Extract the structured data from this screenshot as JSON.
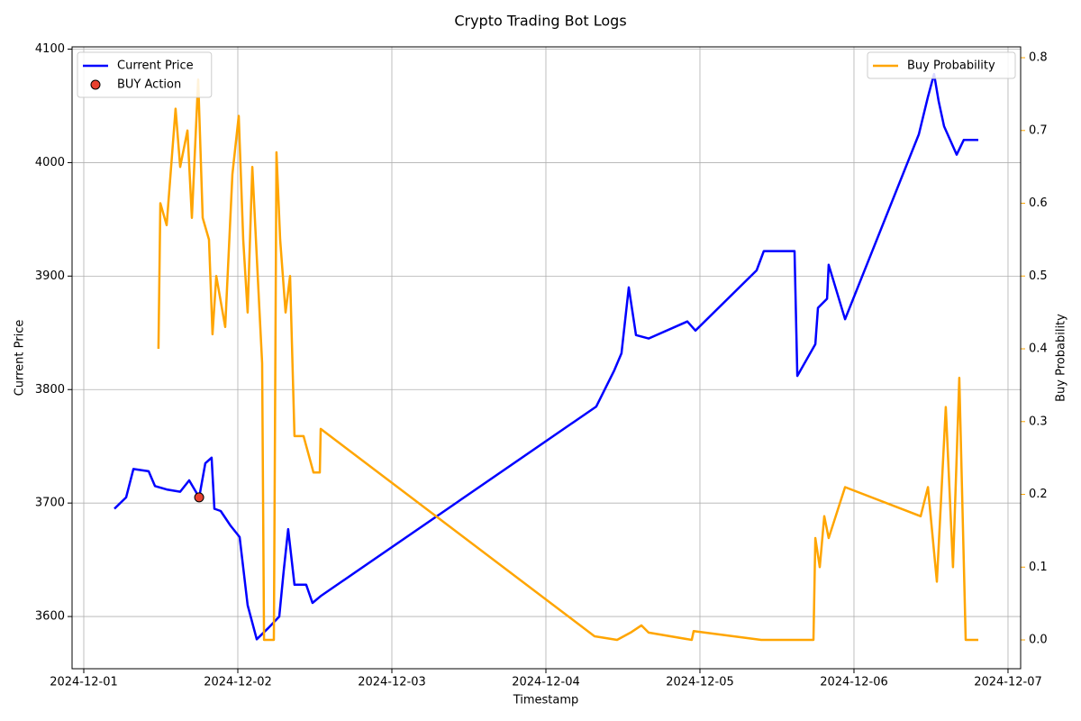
{
  "chart_data": {
    "type": "line",
    "title": "Crypto Trading Bot Logs",
    "xlabel": "Timestamp",
    "ylabel": "Current Price",
    "y2label": "Buy Probability",
    "xlim": [
      0.924,
      7.082
    ],
    "xticks": [
      {
        "value": 1,
        "label": "2024-12-01"
      },
      {
        "value": 2,
        "label": "2024-12-02"
      },
      {
        "value": 3,
        "label": "2024-12-03"
      },
      {
        "value": 4,
        "label": "2024-12-04"
      },
      {
        "value": 5,
        "label": "2024-12-05"
      },
      {
        "value": 6,
        "label": "2024-12-06"
      },
      {
        "value": 7,
        "label": "2024-12-07"
      }
    ],
    "ylim": [
      3554,
      4102
    ],
    "yticks": [
      3600,
      3700,
      3800,
      3900,
      4000,
      4100
    ],
    "y2lim": [
      -0.0396,
      0.8149
    ],
    "y2ticks": [
      {
        "value": 0,
        "label": "0.0"
      },
      0.1,
      0.2,
      0.3,
      0.4,
      0.5,
      0.6,
      0.7,
      0.8
    ],
    "y2_color": "#ffa500",
    "grid": true,
    "legend": "upper left",
    "legend2": "upper right",
    "series": [
      {
        "name": "Current Price",
        "type": "line",
        "color": "#0000ff",
        "x": [
          1.199,
          1.275,
          1.322,
          1.421,
          1.462,
          1.538,
          1.626,
          1.684,
          1.749,
          1.789,
          1.83,
          1.848,
          1.889,
          1.953,
          2.012,
          2.064,
          2.123,
          2.199,
          2.269,
          2.298,
          2.327,
          2.368,
          2.444,
          2.485,
          2.538,
          4.327,
          4.444,
          4.491,
          4.538,
          4.585,
          4.667,
          4.918,
          4.971,
          5.368,
          5.415,
          5.614,
          5.632,
          5.749,
          5.766,
          5.825,
          5.836,
          5.942,
          6.421,
          6.48,
          6.52,
          6.55,
          6.585,
          6.667,
          6.713,
          6.807
        ],
        "values": [
          3695,
          3705,
          3730,
          3728,
          3715,
          3712,
          3710,
          3720,
          3705,
          3735,
          3740,
          3695,
          3693,
          3680,
          3670,
          3610,
          3580,
          3590,
          3600,
          3640,
          3677,
          3628,
          3628,
          3612,
          3618,
          3785,
          3817,
          3832,
          3890,
          3848,
          3845,
          3860,
          3852,
          3905,
          3922,
          3922,
          3812,
          3840,
          3872,
          3880,
          3910,
          3862,
          4025,
          4058,
          4078,
          4054,
          4032,
          4007,
          4020,
          4020
        ]
      },
      {
        "name": "BUY Action",
        "type": "scatter",
        "color": "#e8412f",
        "x": [
          1.749
        ],
        "values": [
          3705
        ]
      },
      {
        "name": "Buy Probability",
        "type": "line",
        "color": "#ffa500",
        "axis": "y2",
        "x": [
          1.485,
          1.497,
          1.538,
          1.596,
          1.626,
          1.673,
          1.702,
          1.743,
          1.772,
          1.813,
          1.836,
          1.86,
          1.918,
          1.965,
          2.006,
          2.035,
          2.064,
          2.094,
          2.129,
          2.158,
          2.17,
          2.234,
          2.251,
          2.275,
          2.31,
          2.339,
          2.368,
          2.427,
          2.491,
          2.532,
          2.538,
          4.316,
          4.462,
          4.55,
          4.62,
          4.667,
          4.947,
          4.959,
          5.398,
          5.737,
          5.749,
          5.778,
          5.807,
          5.836,
          5.942,
          6.433,
          6.48,
          6.538,
          6.596,
          6.643,
          6.684,
          6.725,
          6.807
        ],
        "values": [
          0.4,
          0.6,
          0.57,
          0.73,
          0.65,
          0.7,
          0.58,
          0.77,
          0.58,
          0.55,
          0.42,
          0.5,
          0.43,
          0.64,
          0.72,
          0.55,
          0.45,
          0.65,
          0.5,
          0.38,
          0.0,
          0.0,
          0.67,
          0.55,
          0.45,
          0.5,
          0.28,
          0.28,
          0.23,
          0.23,
          0.29,
          0.005,
          0.0,
          0.01,
          0.02,
          0.01,
          0.0,
          0.012,
          0.0,
          0.0,
          0.14,
          0.1,
          0.17,
          0.14,
          0.21,
          0.17,
          0.21,
          0.08,
          0.32,
          0.1,
          0.36,
          0.0,
          0.0
        ]
      }
    ]
  }
}
